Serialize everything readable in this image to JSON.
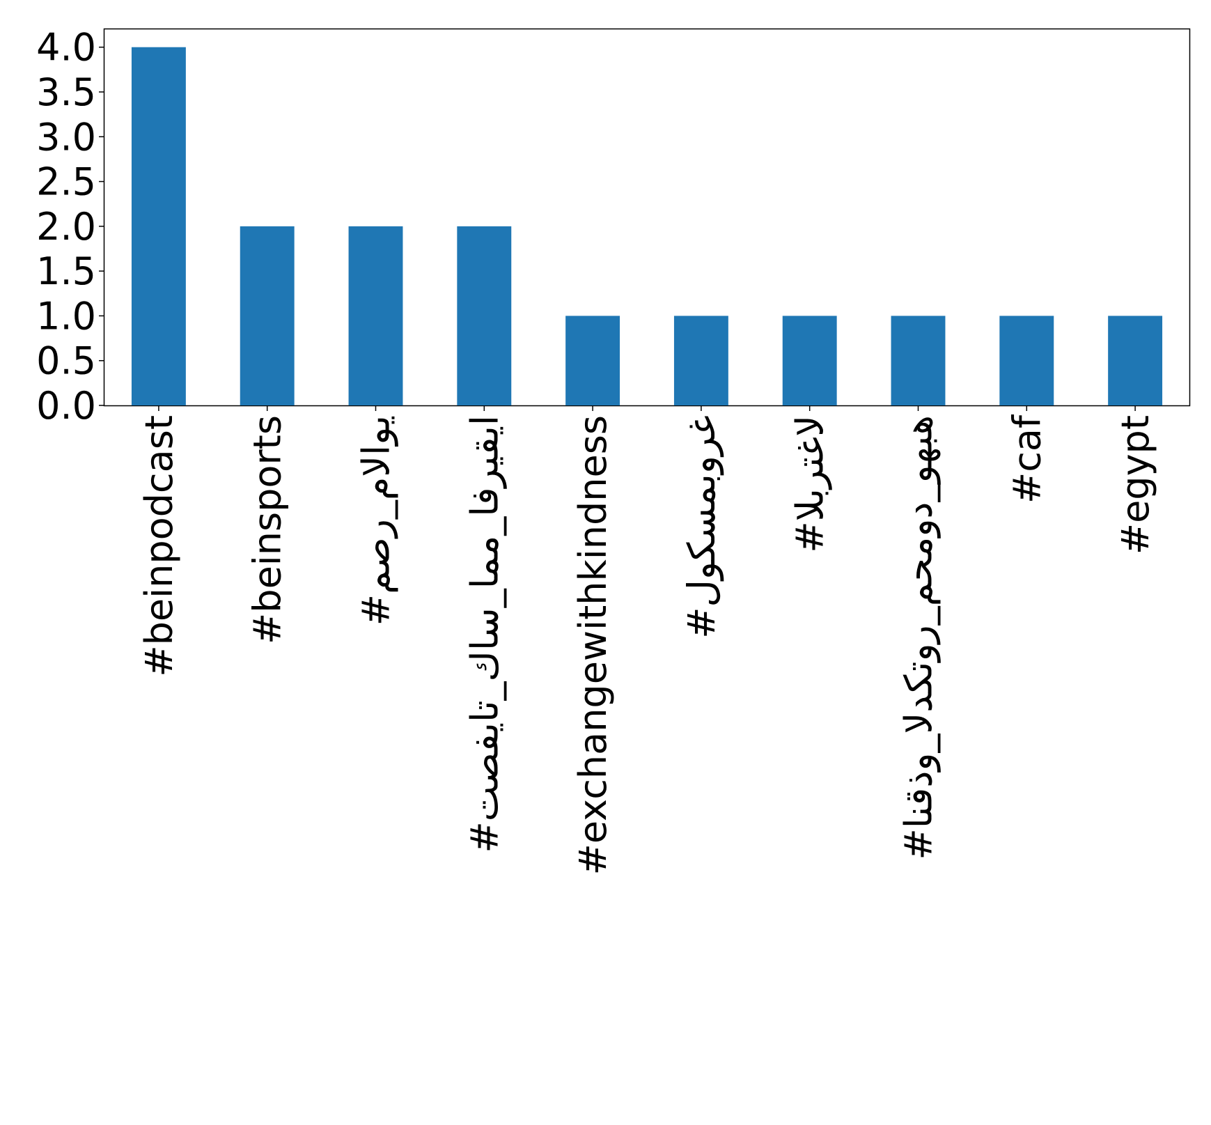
{
  "chart_data": {
    "type": "bar",
    "categories": [
      "#beinpodcast",
      "#beinsports",
      "#مصر_مالاوي",
      "#تصفيات_كاس_امم_افريقيا",
      "#exchangewithkindness",
      "#لوكسمبورغ",
      "#البرتغال",
      "#انقذو_الدكتور_محمود_وهبه",
      "#caf",
      "#egypt"
    ],
    "values": [
      4,
      2,
      2,
      2,
      1,
      1,
      1,
      1,
      1,
      1
    ],
    "color": "#1f77b4",
    "ylim": [
      0,
      4.2
    ],
    "yticks": [
      {
        "value": 0,
        "label": "0.0"
      },
      0.5,
      {
        "value": 1,
        "label": "1.0"
      },
      1.5,
      {
        "value": 2,
        "label": "2.0"
      },
      2.5,
      {
        "value": 3,
        "label": "3.0"
      },
      3.5,
      {
        "value": 4,
        "label": "4.0"
      }
    ],
    "grid": false
  }
}
